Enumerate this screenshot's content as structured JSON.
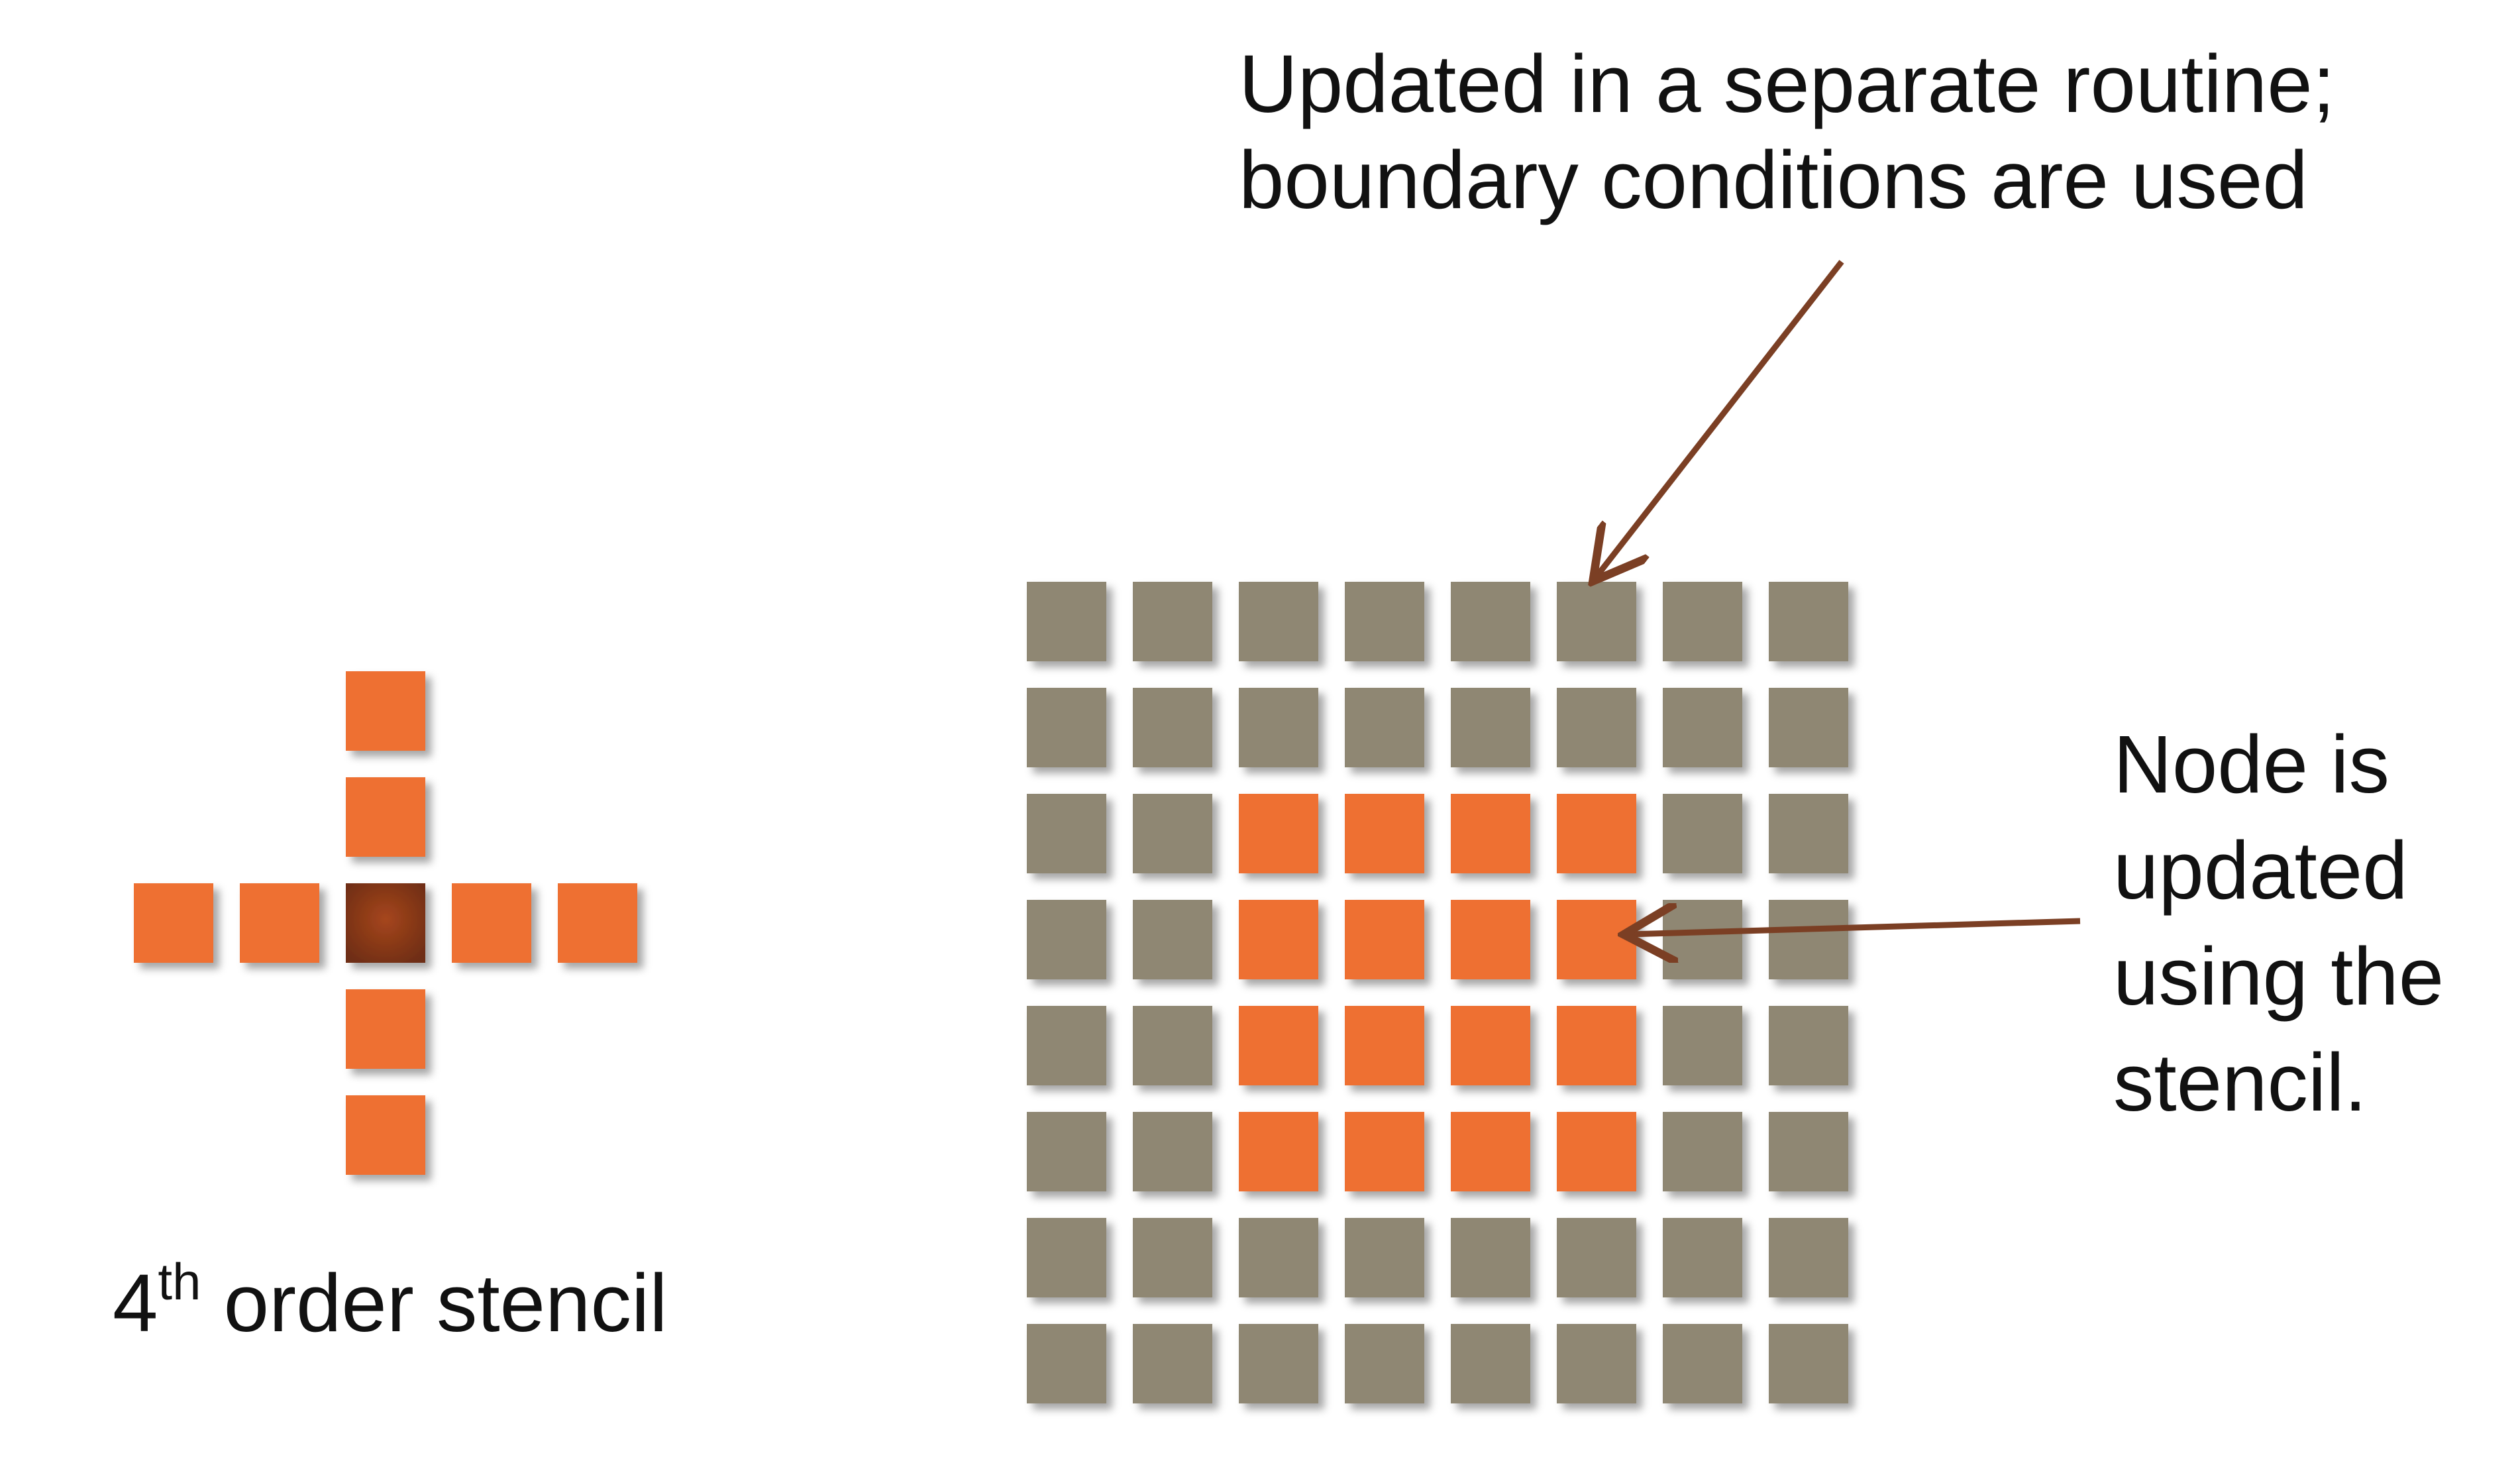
{
  "annotations": {
    "boundary_note_lines": [
      "Updated in a separate routine;",
      "boundary conditions are used"
    ],
    "node_note_lines": [
      "Node is",
      "updated",
      "using the",
      "stencil."
    ],
    "stencil_caption": {
      "order": "4",
      "suffix": "th",
      "rest": " order stencil"
    }
  },
  "grid": {
    "rows": 8,
    "cols": 8,
    "interior_rows": [
      2,
      3,
      4,
      5
    ],
    "interior_cols": [
      2,
      3,
      4,
      5
    ]
  },
  "stencil": {
    "arm_length": 2
  },
  "colors": {
    "boundary_cell": "#8f8773",
    "interior_cell": "#ee7032",
    "stencil_center": "#8b3a1c",
    "arrow": "#7b3f24",
    "text": "#111111"
  }
}
